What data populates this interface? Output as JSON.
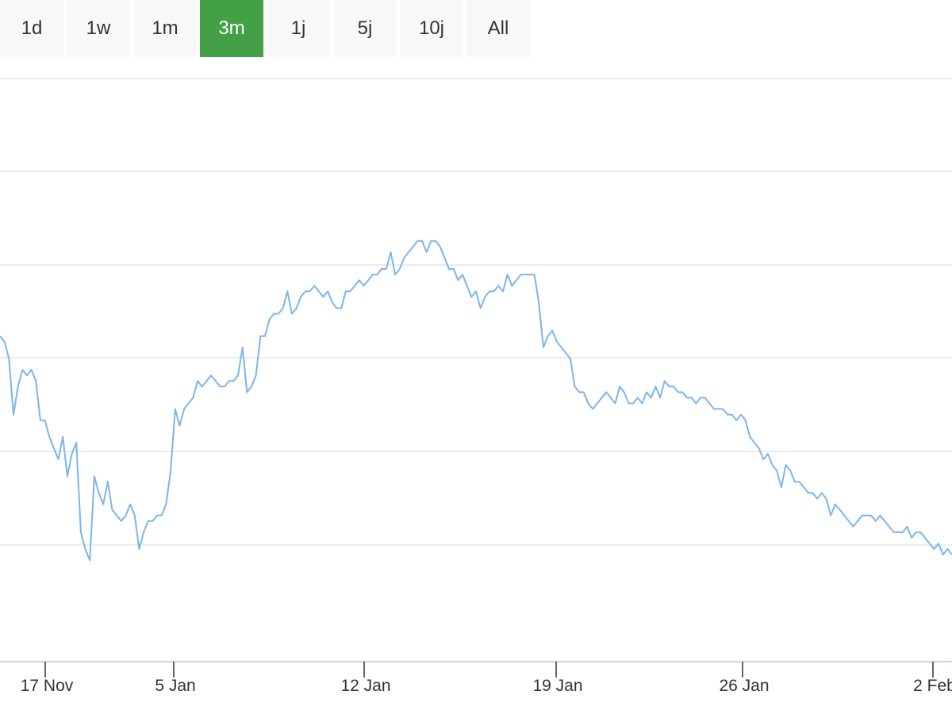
{
  "range_selector": {
    "buttons": [
      "1d",
      "1w",
      "1m",
      "3m",
      "1j",
      "5j",
      "10j",
      "All"
    ],
    "selected": "3m",
    "selected_color": "#43a047"
  },
  "chart_data": {
    "type": "line",
    "title": "",
    "xlabel": "",
    "ylabel": "",
    "x_tick_labels": [
      "17 Nov",
      "5 Jan",
      "12 Jan",
      "19 Jan",
      "26 Jan",
      "2 Feb"
    ],
    "series": [
      {
        "color": "#7cb5ec",
        "values": [
          0.54,
          0.53,
          0.5,
          0.4,
          0.45,
          0.48,
          0.47,
          0.48,
          0.46,
          0.39,
          0.39,
          0.36,
          0.34,
          0.32,
          0.36,
          0.29,
          0.33,
          0.35,
          0.19,
          0.16,
          0.14,
          0.29,
          0.26,
          0.24,
          0.28,
          0.23,
          0.22,
          0.21,
          0.22,
          0.24,
          0.22,
          0.16,
          0.19,
          0.21,
          0.21,
          0.22,
          0.22,
          0.24,
          0.3,
          0.41,
          0.38,
          0.41,
          0.42,
          0.43,
          0.46,
          0.45,
          0.46,
          0.47,
          0.46,
          0.45,
          0.45,
          0.46,
          0.46,
          0.47,
          0.52,
          0.44,
          0.45,
          0.47,
          0.54,
          0.54,
          0.57,
          0.58,
          0.58,
          0.59,
          0.62,
          0.58,
          0.59,
          0.61,
          0.62,
          0.62,
          0.63,
          0.62,
          0.61,
          0.62,
          0.6,
          0.59,
          0.59,
          0.62,
          0.62,
          0.63,
          0.64,
          0.63,
          0.64,
          0.65,
          0.65,
          0.66,
          0.66,
          0.69,
          0.65,
          0.66,
          0.68,
          0.69,
          0.7,
          0.71,
          0.71,
          0.69,
          0.71,
          0.71,
          0.7,
          0.68,
          0.66,
          0.66,
          0.64,
          0.65,
          0.63,
          0.61,
          0.62,
          0.59,
          0.61,
          0.62,
          0.62,
          0.63,
          0.62,
          0.65,
          0.63,
          0.64,
          0.65,
          0.65,
          0.65,
          0.65,
          0.6,
          0.52,
          0.54,
          0.55,
          0.53,
          0.52,
          0.51,
          0.5,
          0.45,
          0.44,
          0.44,
          0.42,
          0.41,
          0.42,
          0.43,
          0.44,
          0.43,
          0.42,
          0.45,
          0.44,
          0.42,
          0.42,
          0.43,
          0.42,
          0.44,
          0.43,
          0.45,
          0.43,
          0.46,
          0.45,
          0.45,
          0.44,
          0.44,
          0.43,
          0.43,
          0.42,
          0.43,
          0.43,
          0.42,
          0.41,
          0.41,
          0.41,
          0.4,
          0.4,
          0.39,
          0.4,
          0.39,
          0.36,
          0.35,
          0.34,
          0.32,
          0.33,
          0.31,
          0.3,
          0.27,
          0.31,
          0.3,
          0.28,
          0.28,
          0.27,
          0.26,
          0.26,
          0.25,
          0.26,
          0.25,
          0.22,
          0.24,
          0.23,
          0.22,
          0.21,
          0.2,
          0.21,
          0.22,
          0.22,
          0.22,
          0.21,
          0.22,
          0.21,
          0.2,
          0.19,
          0.19,
          0.19,
          0.2,
          0.18,
          0.19,
          0.19,
          0.18,
          0.17,
          0.16,
          0.17,
          0.15,
          0.16,
          0.15
        ]
      }
    ],
    "colors": {
      "line": "#7cb5ec",
      "gridline": "#e6e6e6",
      "axis": "#ccd6eb"
    },
    "grid": true,
    "legend": "none",
    "ylim": [
      0,
      1
    ]
  }
}
